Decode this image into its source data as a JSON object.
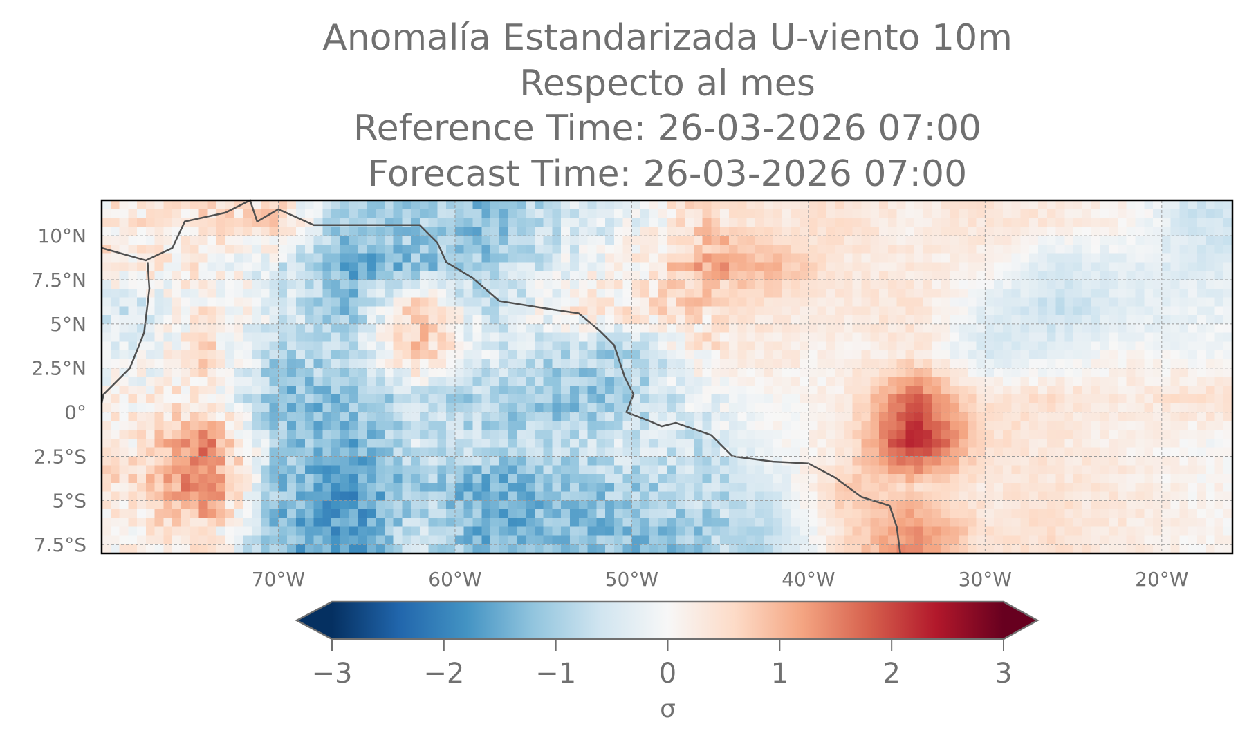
{
  "chart_data": {
    "type": "heatmap",
    "title_lines": [
      "Anomalía Estandarizada U-viento 10m",
      "Respecto al mes",
      "Reference Time: 26-03-2026 07:00",
      "Forecast Time: 26-03-2026 07:00"
    ],
    "xlim": [
      -80,
      -16
    ],
    "ylim": [
      -8,
      12
    ],
    "x_ticks": [
      -70,
      -60,
      -50,
      -40,
      -30,
      -20
    ],
    "x_tick_labels": [
      "70°W",
      "60°W",
      "50°W",
      "40°W",
      "30°W",
      "20°W"
    ],
    "y_ticks": [
      10,
      7.5,
      5,
      2.5,
      0,
      -2.5,
      -5,
      -7.5
    ],
    "y_tick_labels": [
      "10°N",
      "7.5°N",
      "5°N",
      "2.5°N",
      "0°",
      "2.5°S",
      "5°S",
      "7.5°S"
    ],
    "grid": true,
    "colormap": "RdBu_r",
    "colormap_stops": [
      "#053061",
      "#2166ac",
      "#4393c3",
      "#92c5de",
      "#d1e5f0",
      "#f7f7f7",
      "#fddbc7",
      "#f4a582",
      "#d6604d",
      "#b2182b",
      "#67001f"
    ],
    "vmin": -3,
    "vmax": 3,
    "colorbar": {
      "ticks": [
        -3,
        -2,
        -1,
        0,
        1,
        2,
        3
      ],
      "tick_labels": [
        "−3",
        "−2",
        "−1",
        "0",
        "1",
        "2",
        "3"
      ],
      "label": "σ",
      "extend": "both",
      "placement": "bottom"
    },
    "grid_coarse": {
      "lon_edges_step_deg": 4,
      "lat_edges_step_deg": 2.5,
      "values": [
        [
          0.3,
          0.5,
          0.5,
          -1.2,
          -1.0,
          -1.3,
          -0.6,
          -0.2,
          0.6,
          0.3,
          0.5,
          0.2,
          0.4,
          0.3,
          0.1,
          -0.6
        ],
        [
          0.3,
          0.2,
          -0.5,
          -1.5,
          -1.2,
          -1.0,
          -0.3,
          0.1,
          1.2,
          1.0,
          0.3,
          0.3,
          0.1,
          -0.5,
          -0.3,
          -0.4
        ],
        [
          -0.6,
          0.3,
          -0.3,
          -1.2,
          1.0,
          -0.8,
          0.2,
          0.4,
          0.5,
          0.3,
          0.3,
          0.4,
          -0.3,
          -0.7,
          -0.4,
          -0.2
        ],
        [
          -0.3,
          0.6,
          -1.0,
          -0.8,
          0.8,
          -0.5,
          -0.8,
          -1.0,
          0.2,
          0.3,
          0.1,
          0.4,
          -0.5,
          -0.3,
          0.1,
          -0.1
        ],
        [
          0.2,
          0.3,
          -1.3,
          -1.2,
          -0.7,
          -1.0,
          -1.3,
          -0.9,
          -0.2,
          0.0,
          0.2,
          1.8,
          0.4,
          0.5,
          0.3,
          0.5
        ],
        [
          0.3,
          1.5,
          -1.0,
          -1.5,
          -0.5,
          -0.8,
          -0.8,
          -0.5,
          -0.6,
          0.0,
          0.2,
          2.5,
          0.5,
          0.3,
          0.2,
          0.0
        ],
        [
          0.5,
          1.8,
          -1.2,
          -1.8,
          -1.0,
          -1.5,
          -1.2,
          -1.0,
          -0.8,
          -0.5,
          0.8,
          0.6,
          0.3,
          0.4,
          0.3,
          0.1
        ],
        [
          0.2,
          0.5,
          -1.3,
          -1.8,
          -0.6,
          -1.5,
          -1.2,
          -1.3,
          -1.0,
          -0.8,
          0.5,
          1.5,
          0.4,
          0.5,
          0.3,
          0.1
        ]
      ]
    },
    "coastline_lonlat": [
      [
        -80,
        9.3
      ],
      [
        -77.5,
        8.6
      ],
      [
        -76,
        9.3
      ],
      [
        -75.3,
        10.8
      ],
      [
        -73,
        11.3
      ],
      [
        -71.6,
        12
      ],
      [
        -71.2,
        10.8
      ],
      [
        -70,
        11.5
      ],
      [
        -68,
        10.6
      ],
      [
        -66,
        10.6
      ],
      [
        -64,
        10.6
      ],
      [
        -62,
        10.6
      ],
      [
        -61,
        9.6
      ],
      [
        -60.5,
        8.5
      ],
      [
        -59,
        7.6
      ],
      [
        -57.5,
        6.3
      ],
      [
        -55,
        5.9
      ],
      [
        -53,
        5.6
      ],
      [
        -51.8,
        4.6
      ],
      [
        -51,
        3.8
      ],
      [
        -50.4,
        2
      ],
      [
        -49.9,
        1
      ],
      [
        -50.3,
        0
      ],
      [
        -49,
        -0.5
      ],
      [
        -48.3,
        -0.8
      ],
      [
        -47.5,
        -0.6
      ],
      [
        -45.5,
        -1.3
      ],
      [
        -44.3,
        -2.5
      ],
      [
        -42,
        -2.8
      ],
      [
        -40,
        -2.9
      ],
      [
        -38.5,
        -3.7
      ],
      [
        -37,
        -4.8
      ],
      [
        -35.4,
        -5.3
      ],
      [
        -35,
        -6.5
      ],
      [
        -34.8,
        -8
      ]
    ],
    "pacific_coast_lonlat": [
      [
        -77.4,
        8.5
      ],
      [
        -77.3,
        7
      ],
      [
        -77.6,
        4.5
      ],
      [
        -78.4,
        2.5
      ],
      [
        -79.9,
        1
      ],
      [
        -80,
        0.5
      ]
    ]
  }
}
